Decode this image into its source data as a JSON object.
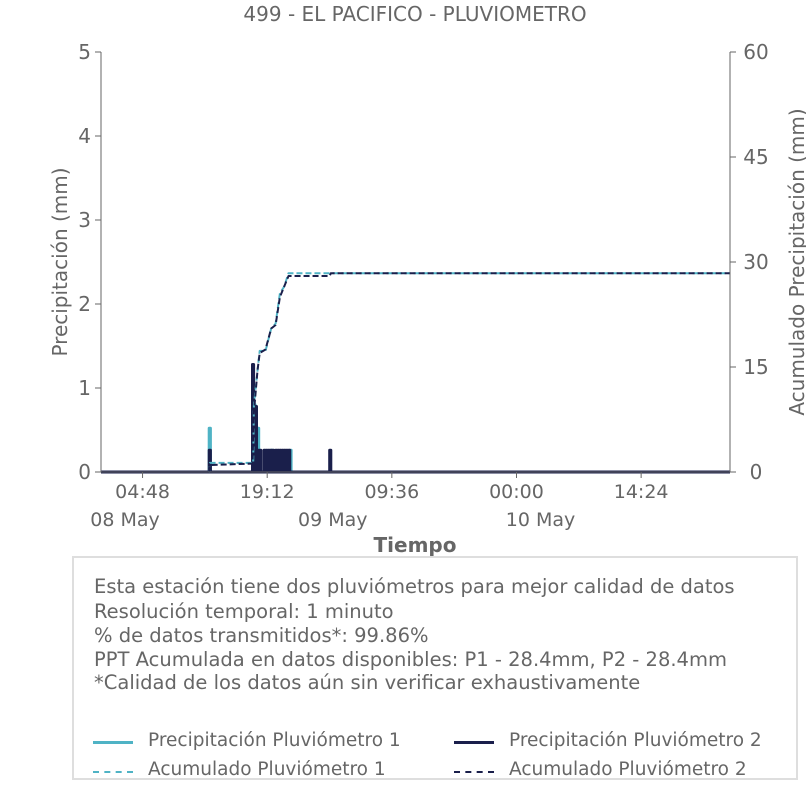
{
  "colors": {
    "p1": "#4fb3c5",
    "p2": "#1a1f4b",
    "text": "#666666",
    "axis": "#666666"
  },
  "chart_data": {
    "type": "line",
    "title": "499 - EL PACIFICO - PLUVIOMETRO",
    "xlabel": "Tiempo",
    "ylabel": "Precipitación (mm)",
    "y2label": "Acumulado Precipitación (mm)",
    "xlim": [
      "2025-05-08T00:00",
      "2025-05-11T00:40"
    ],
    "ylim": [
      0,
      5
    ],
    "y2lim": [
      0,
      60
    ],
    "y_ticks": [
      "0",
      "1",
      "2",
      "3",
      "4",
      "5"
    ],
    "y2_ticks": [
      "0",
      "15",
      "30",
      "45",
      "60"
    ],
    "x_ticks": [
      {
        "time": "2025-05-08T04:48",
        "label": "04:48"
      },
      {
        "time": "2025-05-08T19:12",
        "label": "19:12"
      },
      {
        "time": "2025-05-09T09:36",
        "label": "09:36"
      },
      {
        "time": "2025-05-10T00:00",
        "label": "00:00"
      },
      {
        "time": "2025-05-10T14:24",
        "label": "14:24"
      }
    ],
    "date_labels": [
      {
        "time": "2025-05-08T00:00",
        "label": "08 May"
      },
      {
        "time": "2025-05-09T00:00",
        "label": "09 May"
      },
      {
        "time": "2025-05-10T00:00",
        "label": "10 May"
      }
    ],
    "grid": false,
    "legend_position": "bottom",
    "series": [
      {
        "name": "Precipitación Pluviómetro 1",
        "axis": "left",
        "style": "solid",
        "points": [
          [
            "2025-05-08T00:00",
            0
          ],
          [
            "2025-05-08T12:30",
            0
          ],
          [
            "2025-05-08T12:30",
            0.52
          ],
          [
            "2025-05-08T12:38",
            0.52
          ],
          [
            "2025-05-08T12:38",
            0
          ],
          [
            "2025-05-08T17:40",
            0
          ],
          [
            "2025-05-08T17:40",
            0.8
          ],
          [
            "2025-05-08T17:48",
            0.8
          ],
          [
            "2025-05-08T17:48",
            0
          ],
          [
            "2025-05-08T18:05",
            0
          ],
          [
            "2025-05-08T18:05",
            0.52
          ],
          [
            "2025-05-08T18:13",
            0.52
          ],
          [
            "2025-05-08T18:13",
            0
          ],
          [
            "2025-05-08T19:40",
            0
          ],
          [
            "2025-05-08T19:40",
            0.26
          ],
          [
            "2025-05-08T19:48",
            0.26
          ],
          [
            "2025-05-08T19:48",
            0
          ],
          [
            "2025-05-08T21:50",
            0
          ],
          [
            "2025-05-08T21:50",
            0.26
          ],
          [
            "2025-05-08T21:58",
            0.26
          ],
          [
            "2025-05-08T21:58",
            0
          ],
          [
            "2025-05-11T00:40",
            0
          ]
        ]
      },
      {
        "name": "Precipitación Pluviómetro 2",
        "axis": "left",
        "style": "solid",
        "points": [
          [
            "2025-05-08T00:00",
            0
          ],
          [
            "2025-05-08T12:30",
            0
          ],
          [
            "2025-05-08T12:30",
            0.26
          ],
          [
            "2025-05-08T12:38",
            0.26
          ],
          [
            "2025-05-08T12:38",
            0
          ],
          [
            "2025-05-08T17:30",
            0
          ],
          [
            "2025-05-08T17:30",
            1.28
          ],
          [
            "2025-05-08T17:38",
            1.28
          ],
          [
            "2025-05-08T17:38",
            0
          ],
          [
            "2025-05-08T17:50",
            0
          ],
          [
            "2025-05-08T17:50",
            0.78
          ],
          [
            "2025-05-08T17:58",
            0.78
          ],
          [
            "2025-05-08T17:58",
            0
          ],
          [
            "2025-05-08T18:05",
            0
          ],
          [
            "2025-05-08T18:05",
            0.26
          ],
          [
            "2025-05-08T18:12",
            0.26
          ],
          [
            "2025-05-08T18:12",
            0
          ],
          [
            "2025-05-08T18:20",
            0
          ],
          [
            "2025-05-08T18:20",
            0.26
          ],
          [
            "2025-05-08T18:28",
            0.26
          ],
          [
            "2025-05-08T18:28",
            0
          ],
          [
            "2025-05-08T18:50",
            0
          ],
          [
            "2025-05-08T18:50",
            0.26
          ],
          [
            "2025-05-08T18:58",
            0.26
          ],
          [
            "2025-05-08T18:58",
            0
          ],
          [
            "2025-05-08T19:05",
            0
          ],
          [
            "2025-05-08T19:05",
            0.26
          ],
          [
            "2025-05-08T19:13",
            0.26
          ],
          [
            "2025-05-08T19:13",
            0
          ],
          [
            "2025-05-08T19:20",
            0
          ],
          [
            "2025-05-08T19:20",
            0.26
          ],
          [
            "2025-05-08T19:28",
            0.26
          ],
          [
            "2025-05-08T19:28",
            0
          ],
          [
            "2025-05-08T19:35",
            0
          ],
          [
            "2025-05-08T19:35",
            0.26
          ],
          [
            "2025-05-08T19:43",
            0.26
          ],
          [
            "2025-05-08T19:43",
            0
          ],
          [
            "2025-05-08T19:50",
            0
          ],
          [
            "2025-05-08T19:50",
            0.26
          ],
          [
            "2025-05-08T19:58",
            0.26
          ],
          [
            "2025-05-08T19:58",
            0
          ],
          [
            "2025-05-08T20:10",
            0
          ],
          [
            "2025-05-08T20:10",
            0.26
          ],
          [
            "2025-05-08T20:18",
            0.26
          ],
          [
            "2025-05-08T20:18",
            0
          ],
          [
            "2025-05-08T20:25",
            0
          ],
          [
            "2025-05-08T20:25",
            0.26
          ],
          [
            "2025-05-08T20:33",
            0.26
          ],
          [
            "2025-05-08T20:33",
            0
          ],
          [
            "2025-05-08T20:40",
            0
          ],
          [
            "2025-05-08T20:40",
            0.26
          ],
          [
            "2025-05-08T20:48",
            0.26
          ],
          [
            "2025-05-08T20:48",
            0
          ],
          [
            "2025-05-08T20:55",
            0
          ],
          [
            "2025-05-08T20:55",
            0.26
          ],
          [
            "2025-05-08T21:03",
            0.26
          ],
          [
            "2025-05-08T21:03",
            0
          ],
          [
            "2025-05-08T21:10",
            0
          ],
          [
            "2025-05-08T21:10",
            0.26
          ],
          [
            "2025-05-08T21:18",
            0.26
          ],
          [
            "2025-05-08T21:18",
            0
          ],
          [
            "2025-05-08T21:25",
            0
          ],
          [
            "2025-05-08T21:25",
            0.26
          ],
          [
            "2025-05-08T21:33",
            0.26
          ],
          [
            "2025-05-08T21:33",
            0
          ],
          [
            "2025-05-08T21:40",
            0
          ],
          [
            "2025-05-08T21:40",
            0.26
          ],
          [
            "2025-05-08T21:48",
            0.26
          ],
          [
            "2025-05-08T21:48",
            0
          ],
          [
            "2025-05-09T02:25",
            0
          ],
          [
            "2025-05-09T02:25",
            0.26
          ],
          [
            "2025-05-09T02:33",
            0.26
          ],
          [
            "2025-05-09T02:33",
            0
          ],
          [
            "2025-05-11T00:40",
            0
          ]
        ]
      },
      {
        "name": "Acumulado Pluviómetro 1",
        "axis": "right",
        "style": "dashed",
        "points": [
          [
            "2025-05-08T00:00",
            0
          ],
          [
            "2025-05-08T12:30",
            0
          ],
          [
            "2025-05-08T12:35",
            1.3
          ],
          [
            "2025-05-08T17:35",
            1.3
          ],
          [
            "2025-05-08T17:40",
            9.5
          ],
          [
            "2025-05-08T18:05",
            14.5
          ],
          [
            "2025-05-08T18:20",
            17.3
          ],
          [
            "2025-05-08T19:00",
            17.3
          ],
          [
            "2025-05-08T19:40",
            20.5
          ],
          [
            "2025-05-08T20:10",
            21.2
          ],
          [
            "2025-05-08T20:40",
            25.5
          ],
          [
            "2025-05-08T21:10",
            26.5
          ],
          [
            "2025-05-08T21:40",
            28.4
          ],
          [
            "2025-05-09T02:25",
            28.4
          ],
          [
            "2025-05-11T00:40",
            28.4
          ]
        ]
      },
      {
        "name": "Acumulado Pluviómetro 2",
        "axis": "right",
        "style": "dashed",
        "points": [
          [
            "2025-05-08T00:00",
            0
          ],
          [
            "2025-05-08T12:30",
            0
          ],
          [
            "2025-05-08T12:35",
            1.0
          ],
          [
            "2025-05-08T17:30",
            1.2
          ],
          [
            "2025-05-08T17:38",
            8.0
          ],
          [
            "2025-05-08T18:05",
            14.5
          ],
          [
            "2025-05-08T18:20",
            17.0
          ],
          [
            "2025-05-08T19:00",
            17.5
          ],
          [
            "2025-05-08T19:40",
            20.5
          ],
          [
            "2025-05-08T20:10",
            21.0
          ],
          [
            "2025-05-08T20:40",
            25.0
          ],
          [
            "2025-05-08T21:10",
            26.5
          ],
          [
            "2025-05-08T21:40",
            28.0
          ],
          [
            "2025-05-09T02:25",
            28.0
          ],
          [
            "2025-05-09T02:33",
            28.4
          ],
          [
            "2025-05-11T00:40",
            28.4
          ]
        ]
      }
    ]
  },
  "info_box": {
    "lines": [
      "Esta estación tiene dos pluviómetros para mejor calidad de datos",
      "Resolución temporal: 1 minuto",
      "% de datos transmitidos*: 99.86%",
      "PPT Acumulada en datos disponibles: P1 - 28.4mm, P2 - 28.4mm",
      "*Calidad de los datos aún sin verificar exhaustivamente"
    ],
    "legend": [
      {
        "label": "Precipitación Pluviómetro 1",
        "series": 0
      },
      {
        "label": "Precipitación Pluviómetro 2",
        "series": 1
      },
      {
        "label": "Acumulado Pluviómetro 1",
        "series": 2
      },
      {
        "label": "Acumulado Pluviómetro 2",
        "series": 3
      }
    ]
  }
}
